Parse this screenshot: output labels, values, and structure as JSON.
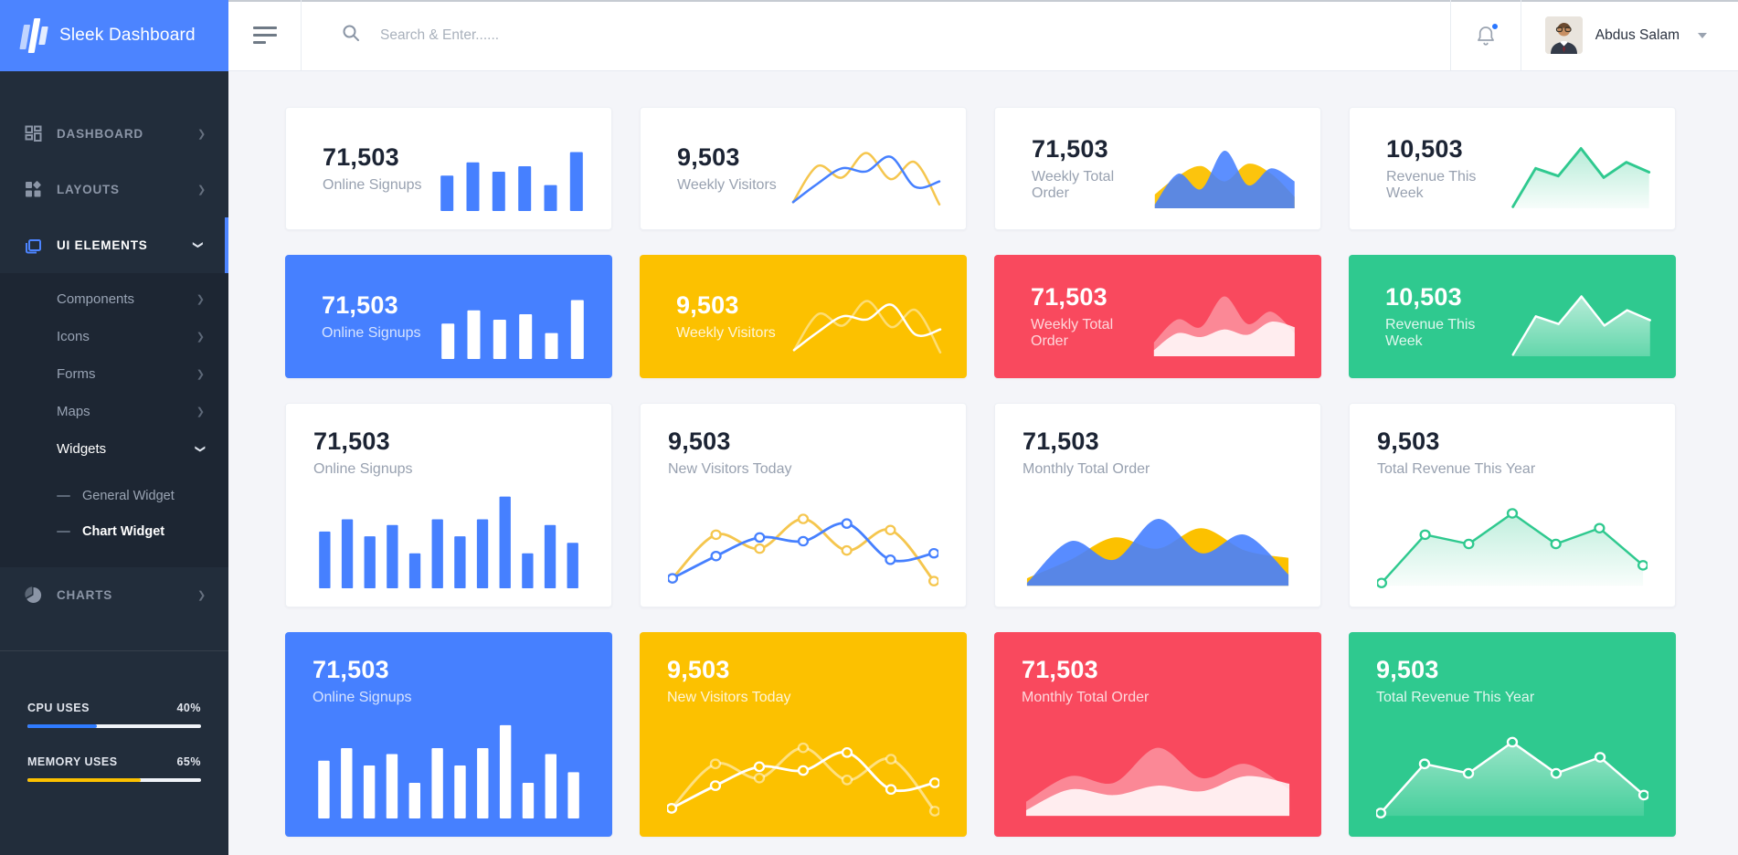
{
  "app": {
    "title": "Sleek Dashboard"
  },
  "header": {
    "search_placeholder": "Search & Enter......",
    "notifications": {
      "has_unread": true
    },
    "user": {
      "name": "Abdus Salam"
    }
  },
  "sidebar": {
    "items": [
      {
        "label": "DASHBOARD",
        "icon": "grid-icon",
        "chevron": "right"
      },
      {
        "label": "LAYOUTS",
        "icon": "layout-icon",
        "chevron": "right"
      },
      {
        "label": "UI ELEMENTS",
        "icon": "copy-icon",
        "chevron": "down",
        "active": true,
        "children": [
          {
            "label": "Components",
            "chevron": "right"
          },
          {
            "label": "Icons",
            "chevron": "right"
          },
          {
            "label": "Forms",
            "chevron": "right"
          },
          {
            "label": "Maps",
            "chevron": "right"
          },
          {
            "label": "Widgets",
            "chevron": "down",
            "open": true,
            "children": [
              {
                "label": "General Widget"
              },
              {
                "label": "Chart Widget",
                "active": true
              }
            ]
          }
        ]
      },
      {
        "label": "CHARTS",
        "icon": "pie-icon",
        "chevron": "right"
      }
    ],
    "usage": [
      {
        "label": "CPU USES",
        "percent": "40%",
        "value": 40,
        "color": "#2f7bff"
      },
      {
        "label": "MEMORY USES",
        "percent": "65%",
        "value": 65,
        "color": "#fcc100"
      }
    ]
  },
  "palette": {
    "blue": "#4680ff",
    "yellow": "#fcc100",
    "red": "#f9495e",
    "green": "#2fc98f",
    "chart_yellow": "#f5c64e"
  },
  "cards": [
    {
      "value": "71,503",
      "label": "Online Signups",
      "variant": "white",
      "size": "small",
      "chart": {
        "type": "bars",
        "values": [
          45,
          62,
          50,
          57,
          33,
          75
        ],
        "color": "#4680ff"
      }
    },
    {
      "value": "9,503",
      "label": "Weekly Visitors",
      "variant": "white",
      "size": "small",
      "chart": {
        "type": "lines",
        "series": [
          {
            "values": [
              8,
              55,
              40,
              72,
              38,
              60,
              5
            ],
            "stroke": "#f5c64e",
            "w": 2.5
          },
          {
            "values": [
              8,
              32,
              52,
              48,
              67,
              28,
              35
            ],
            "stroke": "#4680ff",
            "w": 2.5
          }
        ]
      }
    },
    {
      "value": "71,503",
      "label": "Weekly Total Order",
      "variant": "white",
      "size": "small",
      "chart": {
        "type": "areas",
        "series": [
          {
            "values": [
              18,
              42,
              55,
              35,
              58,
              45,
              15
            ],
            "fill": "#fcc100",
            "opacity": 0.95
          },
          {
            "values": [
              5,
              45,
              25,
              75,
              30,
              52,
              35
            ],
            "fill": "#4680ff",
            "opacity": 0.88
          }
        ]
      }
    },
    {
      "value": "10,503",
      "label": "Revenue This Week",
      "variant": "white",
      "size": "small",
      "chart": {
        "type": "poly",
        "series": [
          {
            "values": [
              2,
              52,
              42,
              78,
              40,
              60,
              47
            ],
            "stroke": "#2fc98f",
            "w": 3,
            "gradient": [
              "rgba(47,201,143,0.35)",
              "rgba(47,201,143,0.04)"
            ]
          }
        ]
      }
    },
    {
      "value": "71,503",
      "label": "Online Signups",
      "variant": "blue",
      "size": "small",
      "chart": {
        "type": "bars",
        "values": [
          45,
          62,
          50,
          57,
          33,
          75
        ],
        "color": "#ffffff"
      }
    },
    {
      "value": "9,503",
      "label": "Weekly Visitors",
      "variant": "yellow",
      "size": "small",
      "chart": {
        "type": "lines",
        "series": [
          {
            "values": [
              8,
              55,
              40,
              72,
              38,
              60,
              5
            ],
            "stroke": "rgba(255,255,255,0.45)",
            "w": 2.5
          },
          {
            "values": [
              8,
              32,
              52,
              48,
              67,
              28,
              35
            ],
            "stroke": "#ffffff",
            "w": 2.5
          }
        ]
      }
    },
    {
      "value": "71,503",
      "label": "Weekly Total Order",
      "variant": "red",
      "size": "small",
      "chart": {
        "type": "areas",
        "series": [
          {
            "values": [
              18,
              48,
              38,
              78,
              42,
              58,
              30
            ],
            "fill": "#ffffff",
            "opacity": 0.35
          },
          {
            "values": [
              8,
              30,
              25,
              35,
              28,
              45,
              38
            ],
            "fill": "#ffffff",
            "opacity": 0.85
          }
        ]
      }
    },
    {
      "value": "10,503",
      "label": "Revenue This Week",
      "variant": "green",
      "size": "small",
      "chart": {
        "type": "poly",
        "series": [
          {
            "values": [
              2,
              52,
              42,
              78,
              40,
              60,
              47
            ],
            "stroke": "#ffffff",
            "w": 2.5,
            "gradient": [
              "rgba(255,255,255,0.65)",
              "rgba(255,255,255,0.25)"
            ]
          }
        ]
      }
    },
    {
      "value": "71,503",
      "label": "Online Signups",
      "variant": "white",
      "size": "large",
      "chart": {
        "type": "bars",
        "values": [
          60,
          73,
          55,
          67,
          37,
          73,
          55,
          73,
          97,
          37,
          67,
          48
        ],
        "color": "#4680ff"
      }
    },
    {
      "value": "9,503",
      "label": "New Visitors Today",
      "variant": "white",
      "size": "large",
      "chart": {
        "type": "lines",
        "markers": true,
        "series": [
          {
            "values": [
              8,
              55,
              40,
              72,
              38,
              60,
              5
            ],
            "stroke": "#f5c64e",
            "w": 3,
            "markerFill": "#ffffff"
          },
          {
            "values": [
              8,
              32,
              52,
              48,
              67,
              28,
              35
            ],
            "stroke": "#4680ff",
            "w": 3,
            "markerFill": "#ffffff"
          }
        ]
      }
    },
    {
      "value": "71,503",
      "label": "Monthly Total Order",
      "variant": "white",
      "size": "large",
      "chart": {
        "type": "areas",
        "series": [
          {
            "values": [
              8,
              28,
              52,
              40,
              62,
              38,
              30
            ],
            "fill": "#fcc100",
            "opacity": 1
          },
          {
            "values": [
              3,
              48,
              28,
              72,
              35,
              55,
              12
            ],
            "fill": "#4680ff",
            "opacity": 0.9
          }
        ]
      }
    },
    {
      "value": "9,503",
      "label": "Total Revenue This Year",
      "variant": "white",
      "size": "large",
      "chart": {
        "type": "poly",
        "markers": true,
        "series": [
          {
            "values": [
              3,
              55,
              45,
              78,
              45,
              62,
              22
            ],
            "stroke": "#2fc98f",
            "w": 2.6,
            "markerFill": "#ffffff",
            "gradient": [
              "rgba(47,201,143,0.30)",
              "rgba(47,201,143,0.03)"
            ]
          }
        ]
      }
    },
    {
      "value": "71,503",
      "label": "Online Signups",
      "variant": "blue",
      "size": "large",
      "chart": {
        "type": "bars",
        "values": [
          60,
          73,
          55,
          67,
          37,
          73,
          55,
          73,
          97,
          37,
          67,
          48
        ],
        "color": "#ffffff"
      }
    },
    {
      "value": "9,503",
      "label": "New Visitors Today",
      "variant": "yellow",
      "size": "large",
      "chart": {
        "type": "lines",
        "markers": true,
        "series": [
          {
            "values": [
              8,
              55,
              40,
              72,
              38,
              60,
              5
            ],
            "stroke": "rgba(255,255,255,0.5)",
            "w": 3,
            "markerFill": "#fcc100"
          },
          {
            "values": [
              8,
              32,
              52,
              48,
              67,
              28,
              35
            ],
            "stroke": "#ffffff",
            "w": 3,
            "markerFill": "#fcc100"
          }
        ]
      }
    },
    {
      "value": "71,503",
      "label": "Monthly Total Order",
      "variant": "red",
      "size": "large",
      "chart": {
        "type": "areas",
        "series": [
          {
            "values": [
              15,
              42,
              35,
              72,
              40,
              55,
              28
            ],
            "fill": "#ffffff",
            "opacity": 0.35
          },
          {
            "values": [
              6,
              28,
              22,
              32,
              26,
              42,
              34
            ],
            "fill": "#ffffff",
            "opacity": 0.85
          }
        ]
      }
    },
    {
      "value": "9,503",
      "label": "Total Revenue This Year",
      "variant": "green",
      "size": "large",
      "chart": {
        "type": "poly",
        "markers": true,
        "series": [
          {
            "values": [
              3,
              55,
              45,
              78,
              45,
              62,
              22
            ],
            "stroke": "#ffffff",
            "w": 2.6,
            "markerFill": "#2fc98f",
            "gradient": [
              "rgba(255,255,255,0.5)",
              "rgba(255,255,255,0.12)"
            ]
          }
        ]
      }
    }
  ]
}
